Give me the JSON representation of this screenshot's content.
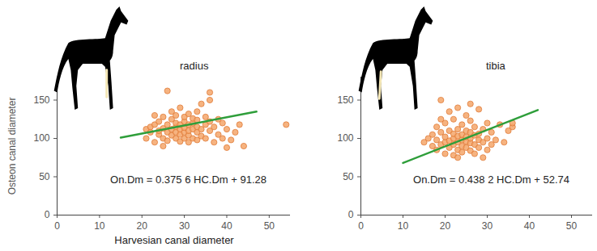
{
  "chart_data": [
    {
      "type": "scatter",
      "title": "radius",
      "annotation": "On.Dm = 0.375 6 HC.Dm + 91.28",
      "xlabel": "Harvesian canal diameter",
      "ylabel": "Osteon canal diameter",
      "x": [
        21,
        21,
        22,
        22,
        23,
        23,
        24,
        24,
        24,
        25,
        25,
        25,
        26,
        26,
        26,
        26,
        27,
        27,
        27,
        27,
        28,
        28,
        28,
        28,
        28,
        29,
        29,
        29,
        29,
        29,
        30,
        30,
        30,
        30,
        30,
        31,
        31,
        31,
        31,
        31,
        32,
        32,
        32,
        32,
        33,
        33,
        33,
        33,
        34,
        34,
        34,
        35,
        35,
        35,
        36,
        36,
        36,
        37,
        37,
        38,
        38,
        39,
        39,
        40,
        40,
        41,
        42,
        43,
        44,
        54,
        25,
        33,
        36,
        23
      ],
      "y": [
        112,
        100,
        108,
        115,
        95,
        118,
        105,
        110,
        122,
        100,
        113,
        128,
        97,
        108,
        118,
        162,
        104,
        112,
        125,
        135,
        100,
        108,
        115,
        120,
        130,
        96,
        105,
        112,
        118,
        140,
        100,
        108,
        114,
        122,
        128,
        95,
        104,
        110,
        118,
        132,
        100,
        112,
        120,
        126,
        98,
        108,
        115,
        124,
        103,
        112,
        145,
        100,
        118,
        128,
        110,
        122,
        160,
        95,
        115,
        105,
        125,
        100,
        120,
        112,
        88,
        98,
        108,
        118,
        90,
        118,
        90,
        135,
        150,
        130
      ],
      "color": "#f5a66a",
      "trend": {
        "x": [
          15,
          47
        ],
        "y": [
          101,
          135
        ],
        "color": "#2e9e3a"
      },
      "xlim": [
        0,
        55
      ],
      "xticks": [
        0,
        10,
        20,
        30,
        40,
        50
      ],
      "ylim": [
        0,
        180
      ],
      "yticks": [
        0,
        50,
        100,
        150
      ]
    },
    {
      "type": "scatter",
      "title": "tibia",
      "annotation": "On.Dm = 0.438 2 HC.Dm + 52.74",
      "x": [
        15,
        16,
        17,
        17,
        18,
        18,
        18,
        19,
        19,
        19,
        20,
        20,
        20,
        20,
        21,
        21,
        21,
        21,
        22,
        22,
        22,
        22,
        22,
        23,
        23,
        23,
        23,
        23,
        24,
        24,
        24,
        24,
        24,
        25,
        25,
        25,
        25,
        25,
        26,
        26,
        26,
        26,
        26,
        27,
        27,
        27,
        27,
        28,
        28,
        28,
        28,
        29,
        29,
        29,
        30,
        30,
        30,
        31,
        31,
        32,
        33,
        34,
        35,
        36,
        36,
        19,
        23,
        26
      ],
      "y": [
        95,
        100,
        90,
        105,
        85,
        98,
        115,
        150,
        92,
        108,
        80,
        95,
        102,
        120,
        88,
        97,
        110,
        135,
        78,
        92,
        100,
        106,
        125,
        85,
        95,
        103,
        112,
        140,
        82,
        90,
        98,
        105,
        118,
        88,
        96,
        102,
        110,
        130,
        84,
        94,
        100,
        108,
        145,
        80,
        92,
        104,
        115,
        88,
        98,
        106,
        138,
        75,
        95,
        112,
        85,
        100,
        120,
        92,
        108,
        98,
        118,
        95,
        110,
        115,
        120,
        125,
        75,
        123
      ],
      "color": "#f5a66a",
      "trend": {
        "x": [
          10,
          42
        ],
        "y": [
          68,
          137
        ],
        "color": "#2e9e3a"
      },
      "xlim": [
        0,
        55
      ],
      "xticks": [
        0,
        10,
        20,
        30,
        40,
        50
      ],
      "ylim": [
        0,
        180
      ],
      "yticks": [
        0,
        50,
        100,
        150
      ]
    }
  ]
}
